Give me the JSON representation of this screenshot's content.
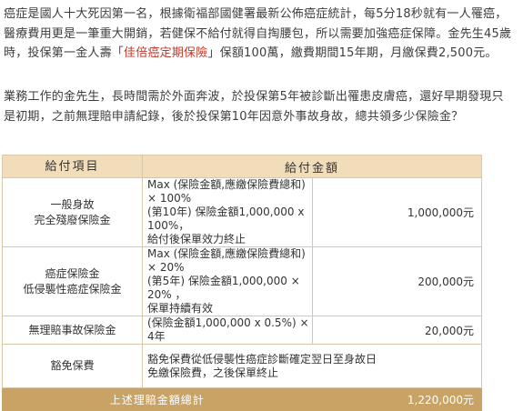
{
  "paragraph1": {
    "before": "癌症是國人十大死因第一名，根據衛福部國健署最新公佈癌症統計，每5分18秒就有一人罹癌，醫療費用更是一筆重大開銷，若健保不給付就得自掏腰包，所以需要加強癌症保障。金先生45歲時，投保第一金人壽「",
    "highlight": "佳倍癌定期保險",
    "after": "」保額100萬，繳費期間15年期，月繳保費2,500元。"
  },
  "paragraph2": "業務工作的金先生，長時間需於外面奔波，於投保第5年被診斷出罹患皮膚癌，還好早期發現只是初期，之前無理賠申請紀錄，後於投保第10年因意外事故身故，總共領多少保險金？",
  "table": {
    "headers": [
      "給付項目",
      "給付金額"
    ],
    "rows": [
      {
        "item_lines": [
          "一般身故",
          "完全殘廢保險金"
        ],
        "formula_lines": [
          "Max (保險金額,應繳保險費總和) × 100%",
          "(第10年) 保險金額1,000,000 x 100%，",
          "給付後保單效力終止"
        ],
        "amount": "1,000,000元"
      },
      {
        "item_lines": [
          "癌症保險金",
          "低侵襲性癌症保險金"
        ],
        "formula_lines": [
          "Max (保險金額,應繳保險費總和) × 20%",
          "(第5年) 保險金額1,000,000 × 20% ，",
          "保單持續有效"
        ],
        "amount": "200,000元"
      },
      {
        "item_lines": [
          "無理賠事故保險金"
        ],
        "formula_lines": [
          "(保險金額1,000,000 x 0.5%) × 4年"
        ],
        "amount": "20,000元"
      },
      {
        "item_lines": [
          "豁免保費"
        ],
        "formula_lines": [
          "豁免保費從低侵襲性癌症診斷確定翌日至身故日",
          "免繳保險費，之後保單終止"
        ],
        "amount": ""
      }
    ],
    "total_label": "上述理賠金額總計",
    "total_value": "1,220,000元"
  },
  "colors": {
    "header_bg": "#f2ddba",
    "total_bg": "#c9a266",
    "border": "#d9c8a8",
    "highlight": "#c0392b"
  }
}
